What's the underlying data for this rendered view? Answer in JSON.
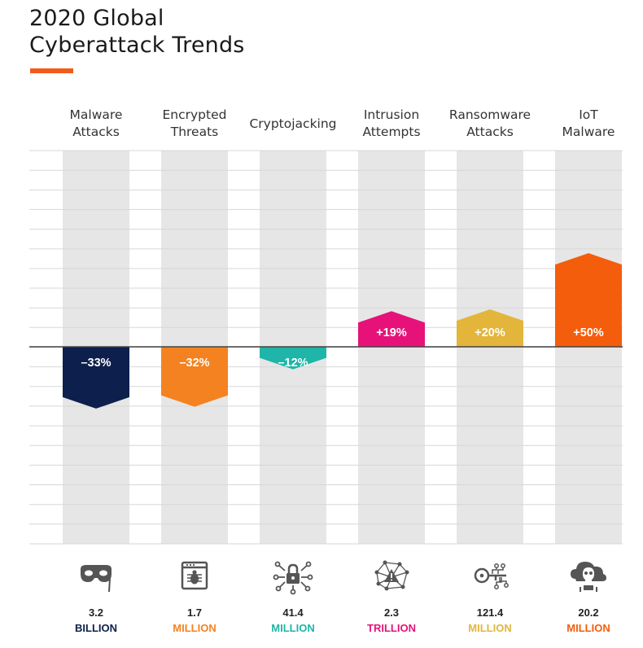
{
  "title_lines": [
    "2020 Global",
    "Cyberattack Trends"
  ],
  "colors": {
    "accent": "#f25c1b",
    "column_bg": "#e6e6e6",
    "gridline": "#d7d7d7",
    "zero_line": "#444444",
    "icon": "#555555"
  },
  "chart_data": {
    "type": "bar",
    "title": "2020 Global Cyberattack Trends",
    "categories": [
      [
        "Malware",
        "Attacks"
      ],
      [
        "Encrypted",
        "Threats"
      ],
      [
        "Cryptojacking"
      ],
      [
        "Intrusion",
        "Attempts"
      ],
      [
        "Ransomware",
        "Attacks"
      ],
      [
        "IoT",
        "Malware"
      ]
    ],
    "values": [
      -33,
      -32,
      -12,
      19,
      20,
      50
    ],
    "value_labels": [
      "–33%",
      "–32%",
      "–12%",
      "+19%",
      "+20%",
      "+50%"
    ],
    "colors": [
      "#0d1f4d",
      "#f58220",
      "#1fb5a8",
      "#e6127a",
      "#e3b53a",
      "#f45d0b"
    ],
    "totals": [
      {
        "number": "3.2",
        "unit": "BILLION"
      },
      {
        "number": "1.7",
        "unit": "MILLION"
      },
      {
        "number": "41.4",
        "unit": "MILLION"
      },
      {
        "number": "2.3",
        "unit": "TRILLION"
      },
      {
        "number": "121.4",
        "unit": "MILLION"
      },
      {
        "number": "20.2",
        "unit": "MILLION"
      }
    ],
    "icons": [
      "mask-icon",
      "malware-bug-window-icon",
      "crypto-lock-circuit-icon",
      "intrusion-network-alert-icon",
      "ransomware-key-circuit-icon",
      "iot-cloud-skull-icon"
    ],
    "unit": "%",
    "ylim": [
      -50,
      50
    ],
    "grid": true,
    "legend": "none"
  }
}
